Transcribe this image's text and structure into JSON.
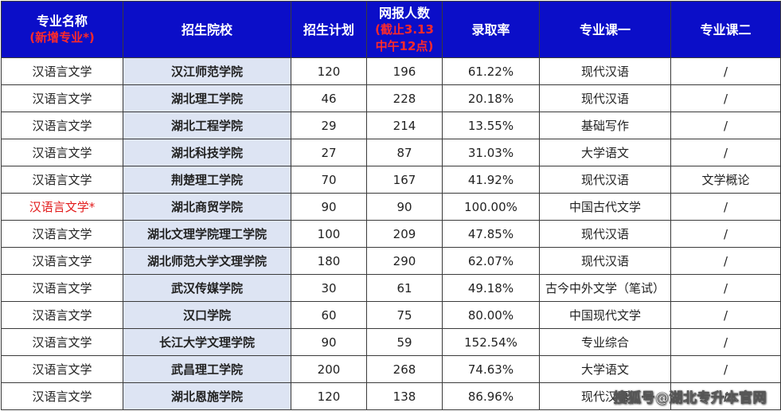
{
  "headers": {
    "major": "专业名称",
    "major_note": "(新增专业*)",
    "school": "招生院校",
    "plan": "招生计划",
    "applicants": "网报人数",
    "applicants_note_1": "(截止3.13",
    "applicants_note_2": "中午12点)",
    "rate": "录取率",
    "course1": "专业课一",
    "course2": "专业课二"
  },
  "rows": [
    {
      "major": "汉语言文学",
      "school": "汉江师范学院",
      "plan": "120",
      "applicants": "196",
      "rate": "61.22%",
      "course1": "现代汉语",
      "course2": "/"
    },
    {
      "major": "汉语言文学",
      "school": "湖北理工学院",
      "plan": "46",
      "applicants": "228",
      "rate": "20.18%",
      "course1": "现代汉语",
      "course2": "/"
    },
    {
      "major": "汉语言文学",
      "school": "湖北工程学院",
      "plan": "29",
      "applicants": "214",
      "rate": "13.55%",
      "course1": "基础写作",
      "course2": "/"
    },
    {
      "major": "汉语言文学",
      "school": "湖北科技学院",
      "plan": "27",
      "applicants": "87",
      "rate": "31.03%",
      "course1": "大学语文",
      "course2": "/"
    },
    {
      "major": "汉语言文学",
      "school": "荆楚理工学院",
      "plan": "70",
      "applicants": "167",
      "rate": "41.92%",
      "course1": "现代汉语",
      "course2": "文学概论"
    },
    {
      "major": "汉语言文学*",
      "school": "湖北商贸学院",
      "plan": "90",
      "applicants": "90",
      "rate": "100.00%",
      "course1": "中国古代文学",
      "course2": "/"
    },
    {
      "major": "汉语言文学",
      "school": "湖北文理学院理工学院",
      "plan": "100",
      "applicants": "209",
      "rate": "47.85%",
      "course1": "现代汉语",
      "course2": "/"
    },
    {
      "major": "汉语言文学",
      "school": "湖北师范大学文理学院",
      "plan": "180",
      "applicants": "290",
      "rate": "62.07%",
      "course1": "现代汉语",
      "course2": "/"
    },
    {
      "major": "汉语言文学",
      "school": "武汉传媒学院",
      "plan": "30",
      "applicants": "61",
      "rate": "49.18%",
      "course1": "古今中外文学（笔试）",
      "course2": "/"
    },
    {
      "major": "汉语言文学",
      "school": "汉口学院",
      "plan": "60",
      "applicants": "75",
      "rate": "80.00%",
      "course1": "中国现代文学",
      "course2": "/"
    },
    {
      "major": "汉语言文学",
      "school": "长江大学文理学院",
      "plan": "90",
      "applicants": "59",
      "rate": "152.54%",
      "course1": "专业综合",
      "course2": "/"
    },
    {
      "major": "汉语言文学",
      "school": "武昌理工学院",
      "plan": "200",
      "applicants": "268",
      "rate": "74.63%",
      "course1": "大学语文",
      "course2": "/"
    },
    {
      "major": "汉语言文学",
      "school": "湖北恩施学院",
      "plan": "120",
      "applicants": "138",
      "rate": "86.96%",
      "course1": "现代汉语",
      "course2": "/"
    }
  ],
  "watermark": "搜狐号@湖北专升本官网",
  "colors": {
    "header_bg": "#0b0ec8",
    "header_text": "#ffffff",
    "header_note": "#ff2a2a",
    "school_col_bg": "#dde4f3",
    "new_major_text": "#e21b1b"
  }
}
